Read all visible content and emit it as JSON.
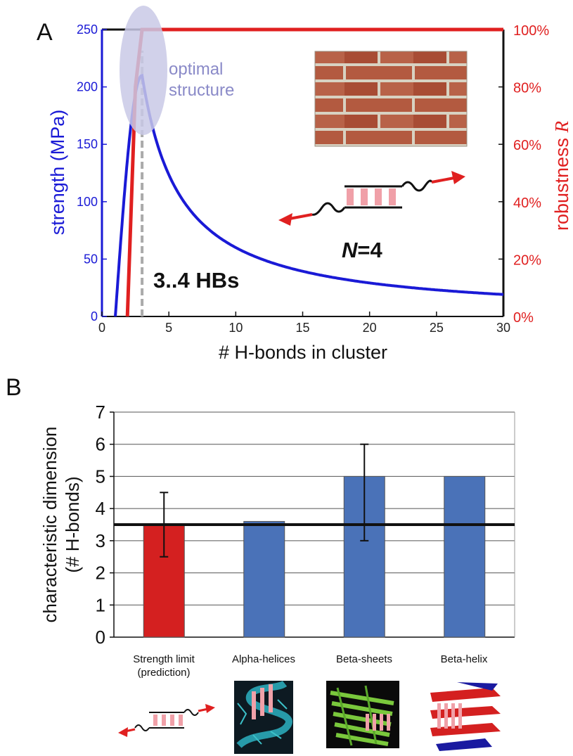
{
  "panel_a": {
    "label": "A",
    "xlabel": "# H-bonds in cluster",
    "ylabel_left": "strength (MPa)",
    "ylabel_right_main": "robustness ",
    "ylabel_right_italic": "R",
    "optimal_text_line1": "optimal",
    "optimal_text_line2": "structure",
    "hbs_annotation": "3..4 HBs",
    "n_annotation_italic": "N",
    "n_annotation_rest": "=4",
    "colors": {
      "strength": "#1a1ad6",
      "robustness": "#e02020",
      "optimal_ellipse": "#c9c9e6",
      "dashed": "#aaaaaa"
    }
  },
  "panel_b": {
    "label": "B",
    "ylabel_line1": "characteristic dimension",
    "ylabel_line2": "(# H-bonds)",
    "categories": [
      {
        "line1": "Strength limit",
        "line2": "(prediction)"
      },
      {
        "line1": "Alpha-helices",
        "line2": ""
      },
      {
        "line1": "Beta-sheets",
        "line2": ""
      },
      {
        "line1": "Beta-helix",
        "line2": ""
      }
    ]
  },
  "chart_data": [
    {
      "type": "line",
      "xlabel": "# H-bonds in cluster",
      "ylabel": "strength (MPa)",
      "y2label": "robustness R",
      "xlim": [
        0,
        30
      ],
      "ylim": [
        0,
        250
      ],
      "y2lim": [
        0,
        1
      ],
      "xticks": [
        0,
        5,
        10,
        15,
        20,
        25,
        30
      ],
      "yticks": [
        0,
        50,
        100,
        150,
        200,
        250
      ],
      "y2ticks": [
        "0%",
        "20%",
        "40%",
        "60%",
        "80%",
        "100%"
      ],
      "grid": false,
      "series": [
        {
          "axis": "left",
          "color": "#1a1ad6",
          "points": [
            [
              1,
              0
            ],
            [
              1.5,
              70
            ],
            [
              2,
              140
            ],
            [
              2.5,
              185
            ],
            [
              3,
              210
            ],
            [
              3.5,
              180
            ],
            [
              4,
              160
            ],
            [
              5,
              130
            ],
            [
              6,
              110
            ],
            [
              7,
              95
            ],
            [
              8,
              83
            ],
            [
              10,
              66
            ],
            [
              12,
              55
            ],
            [
              15,
              44
            ],
            [
              18,
              37
            ],
            [
              20,
              34
            ],
            [
              25,
              27
            ],
            [
              30,
              22
            ]
          ]
        },
        {
          "axis": "right",
          "color": "#e02020",
          "points": [
            [
              1.9,
              0
            ],
            [
              2.5,
              0.8
            ],
            [
              3,
              1.0
            ],
            [
              30,
              1.0
            ]
          ]
        }
      ],
      "annotations": [
        "optimal structure",
        "3..4 HBs",
        "N=4"
      ]
    },
    {
      "type": "bar",
      "ylabel": "characteristic dimension (# H-bonds)",
      "categories": [
        "Strength limit (prediction)",
        "Alpha-helices",
        "Beta-sheets",
        "Beta-helix"
      ],
      "values": [
        3.5,
        3.6,
        5,
        5
      ],
      "error_low": [
        2.5,
        null,
        3,
        null
      ],
      "error_high": [
        4.5,
        null,
        6,
        null
      ],
      "colors": [
        "#d42020",
        "#4a72b8",
        "#4a72b8",
        "#4a72b8"
      ],
      "reference_line": 3.5,
      "ylim": [
        0,
        7
      ],
      "yticks": [
        0,
        1,
        2,
        3,
        4,
        5,
        6,
        7
      ],
      "grid": true
    }
  ]
}
